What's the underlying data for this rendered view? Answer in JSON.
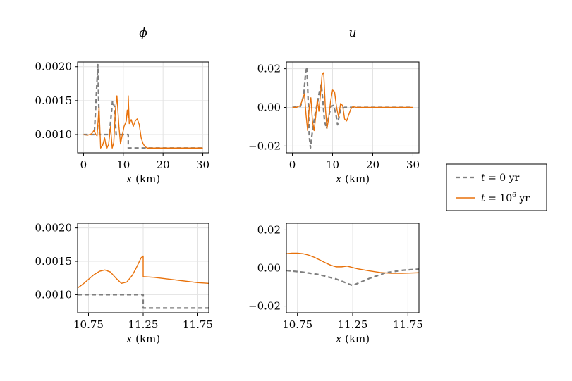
{
  "figure": {
    "column_titles": [
      "ϕ",
      "u"
    ],
    "xlabel_var": "x",
    "xlabel_unit": "(km)",
    "legend": {
      "entries": [
        {
          "var": "t",
          "eq": " = ",
          "val": "0",
          "unit": "yr",
          "style": "dashed",
          "color": "#7f7f7f"
        },
        {
          "var": "t",
          "eq": " = ",
          "val": "10",
          "sup": "6",
          "unit": "yr",
          "style": "solid",
          "color": "#e8710a"
        }
      ],
      "placement": "right"
    }
  },
  "chart_data": [
    {
      "type": "line",
      "title": "ϕ",
      "xlabel": "x (km)",
      "ylabel": "",
      "xlim": [
        -1.5,
        31.5
      ],
      "ylim": [
        0.00073,
        0.00207
      ],
      "xticks": [
        0,
        10,
        20,
        30
      ],
      "xticklabels": [
        "0",
        "10",
        "20",
        "30"
      ],
      "yticks": [
        0.001,
        0.0015,
        0.002
      ],
      "yticklabels": [
        "0.0010",
        "0.0015",
        "0.0020"
      ],
      "grid": true,
      "series": [
        {
          "name": "t = 0 yr",
          "color": "#7f7f7f",
          "dash": true,
          "x": [
            0,
            2.7,
            3.6,
            4.0,
            6.5,
            7.3,
            7.8,
            8.2,
            10.0,
            11.25,
            11.25,
            30
          ],
          "y": [
            0.001,
            0.001,
            0.00203,
            0.001,
            0.001,
            0.0015,
            0.0014,
            0.001,
            0.001,
            0.001,
            0.0008,
            0.0008
          ]
        },
        {
          "name": "t = 10^6 yr",
          "color": "#e8710a",
          "dash": false,
          "x": [
            0,
            1,
            2,
            2.6,
            3.0,
            3.4,
            3.9,
            4.3,
            4.8,
            5.3,
            5.8,
            6.3,
            6.8,
            7.2,
            7.6,
            8.0,
            8.4,
            8.9,
            9.3,
            9.7,
            10.2,
            10.75,
            11.0,
            11.25,
            11.25,
            11.5,
            12.0,
            12.5,
            13.0,
            13.5,
            14.0,
            14.5,
            15.0,
            15.5,
            16.0,
            17,
            20,
            25,
            30
          ],
          "y": [
            0.001,
            0.00099,
            0.00101,
            0.00106,
            0.00101,
            0.00098,
            0.0014,
            0.0008,
            0.00084,
            0.00095,
            0.00079,
            0.00085,
            0.00112,
            0.0008,
            0.00088,
            0.00135,
            0.00157,
            0.00112,
            0.00086,
            0.00098,
            0.00112,
            0.0012,
            0.00136,
            0.00125,
            0.00157,
            0.00116,
            0.00122,
            0.00112,
            0.0012,
            0.00123,
            0.00115,
            0.00095,
            0.00086,
            0.00082,
            0.0008,
            0.0008,
            0.0008,
            0.0008,
            0.0008
          ]
        }
      ]
    },
    {
      "type": "line",
      "title": "u",
      "xlabel": "x (km)",
      "ylabel": "",
      "xlim": [
        -1.5,
        31.5
      ],
      "ylim": [
        -0.0235,
        0.0235
      ],
      "xticks": [
        0,
        10,
        20,
        30
      ],
      "xticklabels": [
        "0",
        "10",
        "20",
        "30"
      ],
      "yticks": [
        -0.02,
        0.0,
        0.02
      ],
      "yticklabels": [
        "−0.02",
        "0.00",
        "0.02"
      ],
      "grid": true,
      "series": [
        {
          "name": "t = 0 yr",
          "color": "#7f7f7f",
          "dash": true,
          "x": [
            0,
            2.0,
            2.8,
            3.3,
            3.6,
            3.9,
            4.2,
            4.5,
            5.0,
            5.7,
            6.3,
            6.8,
            7.2,
            7.6,
            8.0,
            8.5,
            9.0,
            9.6,
            10.2,
            10.8,
            11.25,
            11.5,
            12.0,
            13.0,
            14.0,
            15,
            20,
            30
          ],
          "y": [
            0,
            0.0005,
            0.006,
            0.018,
            0.021,
            0.005,
            -0.015,
            -0.021,
            -0.012,
            -0.003,
            0.003,
            0.009,
            0.012,
            0.003,
            -0.007,
            -0.011,
            -0.005,
            0.0005,
            0.001,
            -0.003,
            -0.009,
            -0.006,
            -0.001,
            0,
            0,
            0,
            0,
            0
          ]
        },
        {
          "name": "t = 10^6 yr",
          "color": "#e8710a",
          "dash": false,
          "x": [
            0,
            1.0,
            2.0,
            2.5,
            3.0,
            3.4,
            3.8,
            4.2,
            4.6,
            5.0,
            5.4,
            5.8,
            6.2,
            6.6,
            7.0,
            7.4,
            7.8,
            8.2,
            8.6,
            9.0,
            9.5,
            10.0,
            10.5,
            11.0,
            11.5,
            12.0,
            12.5,
            13.0,
            13.5,
            14.0,
            14.5,
            15.0,
            15.5,
            16.0,
            17.0,
            20,
            30
          ],
          "y": [
            0,
            0,
            0.001,
            0.004,
            0.007,
            -0.004,
            -0.012,
            0.0,
            0.005,
            -0.007,
            -0.012,
            -0.005,
            0.004,
            -0.002,
            0.007,
            0.017,
            0.018,
            0.0,
            -0.011,
            -0.006,
            0.003,
            0.009,
            0.008,
            0.0,
            -0.005,
            0.002,
            0.001,
            -0.006,
            -0.007,
            -0.004,
            -0.001,
            0.0003,
            0.0002,
            0,
            0,
            0,
            0
          ]
        }
      ]
    },
    {
      "type": "line",
      "title": "",
      "xlabel": "x (km)",
      "ylabel": "",
      "xlim": [
        10.65,
        11.85
      ],
      "ylim": [
        0.00073,
        0.00207
      ],
      "xticks": [
        10.75,
        11.25,
        11.75
      ],
      "xticklabels": [
        "10.75",
        "11.25",
        "11.75"
      ],
      "yticks": [
        0.001,
        0.0015,
        0.002
      ],
      "yticklabels": [
        "0.0010",
        "0.0015",
        "0.0020"
      ],
      "grid": true,
      "series": [
        {
          "name": "t = 0 yr",
          "color": "#7f7f7f",
          "dash": true,
          "x": [
            10.65,
            11.25,
            11.25,
            11.85
          ],
          "y": [
            0.001,
            0.001,
            0.0008,
            0.0008
          ]
        },
        {
          "name": "t = 10^6 yr",
          "color": "#e8710a",
          "dash": false,
          "x": [
            10.65,
            10.7,
            10.75,
            10.8,
            10.85,
            10.9,
            10.95,
            11.0,
            11.05,
            11.1,
            11.15,
            11.18,
            11.21,
            11.23,
            11.25,
            11.25,
            11.35,
            11.45,
            11.55,
            11.65,
            11.75,
            11.85
          ],
          "y": [
            0.0011,
            0.00116,
            0.00123,
            0.0013,
            0.00135,
            0.00137,
            0.00134,
            0.00125,
            0.00117,
            0.00119,
            0.00129,
            0.00138,
            0.00148,
            0.00155,
            0.00158,
            0.00127,
            0.00126,
            0.00124,
            0.00122,
            0.0012,
            0.00118,
            0.00117
          ]
        }
      ]
    },
    {
      "type": "line",
      "title": "",
      "xlabel": "x (km)",
      "ylabel": "",
      "xlim": [
        10.65,
        11.85
      ],
      "ylim": [
        -0.0235,
        0.0235
      ],
      "xticks": [
        10.75,
        11.25,
        11.75
      ],
      "xticklabels": [
        "10.75",
        "11.25",
        "11.75"
      ],
      "yticks": [
        -0.02,
        0.0,
        0.02
      ],
      "yticklabels": [
        "−0.02",
        "0.00",
        "0.02"
      ],
      "grid": true,
      "series": [
        {
          "name": "t = 0 yr",
          "color": "#7f7f7f",
          "dash": true,
          "x": [
            10.65,
            10.8,
            10.95,
            11.1,
            11.25,
            11.4,
            11.55,
            11.7,
            11.85
          ],
          "y": [
            -0.0013,
            -0.0022,
            -0.0035,
            -0.0058,
            -0.0092,
            -0.0055,
            -0.0025,
            -0.0012,
            -0.0006
          ]
        },
        {
          "name": "t = 10^6 yr",
          "color": "#e8710a",
          "dash": false,
          "x": [
            10.65,
            10.7,
            10.75,
            10.8,
            10.85,
            10.9,
            10.95,
            11.0,
            11.05,
            11.1,
            11.15,
            11.2,
            11.25,
            11.3,
            11.4,
            11.5,
            11.6,
            11.7,
            11.85
          ],
          "y": [
            0.0075,
            0.0078,
            0.0078,
            0.0075,
            0.0068,
            0.0057,
            0.0043,
            0.0028,
            0.0015,
            0.0006,
            0.0006,
            0.001,
            0.0002,
            -0.0005,
            -0.0015,
            -0.0024,
            -0.0028,
            -0.0028,
            -0.0025
          ]
        }
      ]
    }
  ]
}
